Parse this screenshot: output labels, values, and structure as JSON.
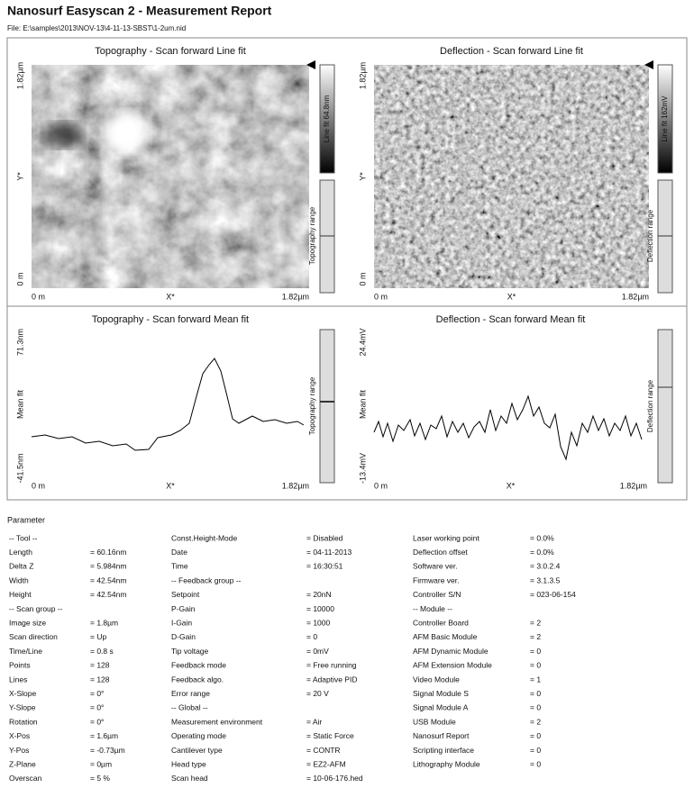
{
  "header": {
    "title": "Nanosurf Easyscan 2 - Measurement Report",
    "file": "File: E:\\samples\\2013\\NOV-13\\4-11-13-SBST\\1-2um.nid"
  },
  "panels": [
    {
      "title": "Topography - Scan forward   Line fit",
      "y_max": "1.82µm",
      "y_label": "Y*",
      "y_min": "0 m",
      "x_min": "0 m",
      "x_label": "X*",
      "x_max": "1.82µm",
      "scale": "Line fit 64.8nm",
      "range": "Topography range"
    },
    {
      "title": "Deflection - Scan forward   Line fit",
      "y_max": "1.82µm",
      "y_label": "Y*",
      "y_min": "0 m",
      "x_min": "0 m",
      "x_label": "X*",
      "x_max": "1.82µm",
      "scale": "Line fit 162mV",
      "range": "Deflection range"
    },
    {
      "title": "Topography - Scan forward   Mean fit",
      "y_max": "71.3nm",
      "y_label": "Mean fit",
      "y_min": "-41.5nm",
      "x_min": "0 m",
      "x_label": "X*",
      "x_max": "1.82µm",
      "range": "Topography range"
    },
    {
      "title": "Deflection - Scan forward   Mean fit",
      "y_max": "24.4mV",
      "y_label": "Mean fit",
      "y_min": "-13.4mV",
      "x_min": "0 m",
      "x_label": "X*",
      "x_max": "1.82µm",
      "range": "Deflection range"
    }
  ],
  "parameters": {
    "title": "Parameter",
    "columns": [
      [
        [
          "-- Tool --"
        ],
        [
          "Length",
          "= 60.16nm"
        ],
        [
          "Delta Z",
          "= 5.984nm"
        ],
        [
          "Width",
          "= 42.54nm"
        ],
        [
          "Height",
          "= 42.54nm"
        ],
        [
          "-- Scan group --"
        ],
        [
          "Image size",
          "= 1.8µm"
        ],
        [
          "Scan direction",
          "= Up"
        ],
        [
          "Time/Line",
          "= 0.8 s"
        ],
        [
          "Points",
          "= 128"
        ],
        [
          "Lines",
          "= 128"
        ],
        [
          "X-Slope",
          "= 0°"
        ],
        [
          "Y-Slope",
          "= 0°"
        ],
        [
          "Rotation",
          "= 0°"
        ],
        [
          "X-Pos",
          "= 1.6µm"
        ],
        [
          "Y-Pos",
          "= -0.73µm"
        ],
        [
          "Z-Plane",
          "= 0µm"
        ],
        [
          "Overscan",
          "= 5 %"
        ]
      ],
      [
        [
          "Const.Height-Mode",
          "= Disabled"
        ],
        [
          "Date",
          "= 04-11-2013"
        ],
        [
          "Time",
          "= 16:30:51"
        ],
        [
          "-- Feedback group --"
        ],
        [
          "Setpoint",
          "= 20nN"
        ],
        [
          "P-Gain",
          "= 10000"
        ],
        [
          "I-Gain",
          "= 1000"
        ],
        [
          "D-Gain",
          "= 0"
        ],
        [
          "Tip voltage",
          "= 0mV"
        ],
        [
          "Feedback mode",
          "= Free running"
        ],
        [
          "Feedback algo.",
          "= Adaptive PID"
        ],
        [
          "Error range",
          "= 20 V"
        ],
        [
          "-- Global --"
        ],
        [
          "Measurement environment",
          "= Air"
        ],
        [
          "Operating mode",
          "= Static Force"
        ],
        [
          "Cantilever type",
          "= CONTR"
        ],
        [
          "Head type",
          "= EZ2-AFM"
        ],
        [
          "Scan head",
          "= 10-06-176.hed"
        ]
      ],
      [
        [
          "Laser working point",
          "= 0.0%"
        ],
        [
          "Deflection offset",
          "= 0.0%"
        ],
        [
          "Software ver.",
          "= 3.0.2.4"
        ],
        [
          "Firmware ver.",
          "= 3.1.3.5"
        ],
        [
          "Controller S/N",
          "= 023-06-154"
        ],
        [
          "-- Module --"
        ],
        [
          "Controller Board",
          "= 2"
        ],
        [
          "AFM Basic Module",
          "= 2"
        ],
        [
          "AFM Dynamic Module",
          "= 0"
        ],
        [
          "AFM Extension Module",
          "= 0"
        ],
        [
          "Video Module",
          "= 1"
        ],
        [
          "Signal Module S",
          "= 0"
        ],
        [
          "Signal Module A",
          "= 0"
        ],
        [
          "USB Module",
          "= 2"
        ],
        [
          "Nanosurf Report",
          "= 0"
        ],
        [
          "Scripting interface",
          "= 0"
        ],
        [
          "Lithography Module",
          "= 0"
        ]
      ]
    ]
  }
}
